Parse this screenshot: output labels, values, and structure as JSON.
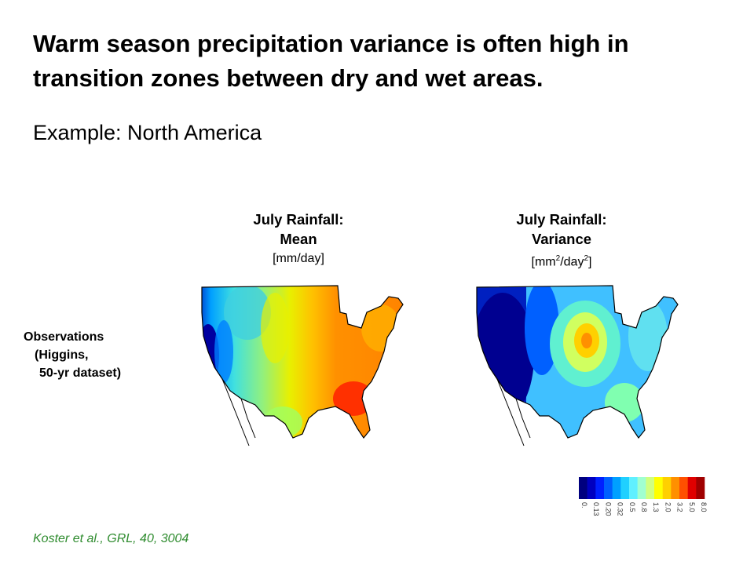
{
  "slide": {
    "title": "Warm season precipitation variance is often high in transition zones between dry and wet areas.",
    "subtitle": "Example: North America",
    "citation": "Koster et al., GRL, 40, 3004"
  },
  "panels": {
    "mean": {
      "line1": "July Rainfall:",
      "line2": "Mean",
      "unit": "[mm/day]"
    },
    "variance": {
      "line1": "July Rainfall:",
      "line2": "Variance",
      "unit_base1": "[mm",
      "unit_sup1": "2",
      "unit_base2": "/day",
      "unit_sup2": "2",
      "unit_end": "]"
    }
  },
  "row_label": {
    "line1": "Observations",
    "line2": "(Higgins,",
    "line3": "50-yr dataset)"
  },
  "colorbar": {
    "colors": [
      "#00007f",
      "#0000c0",
      "#0020ff",
      "#0060ff",
      "#00a0ff",
      "#20d0ff",
      "#60f0ff",
      "#a0ffd0",
      "#d0ff80",
      "#ffff00",
      "#ffd000",
      "#ff9000",
      "#ff5000",
      "#e00000",
      "#a00000"
    ],
    "tick_labels": [
      "0.",
      "0.13",
      "0.20",
      "0.32",
      "0.5",
      "0.8",
      "1.3",
      "2.0",
      "3.2",
      "5.0",
      "8.0"
    ]
  }
}
